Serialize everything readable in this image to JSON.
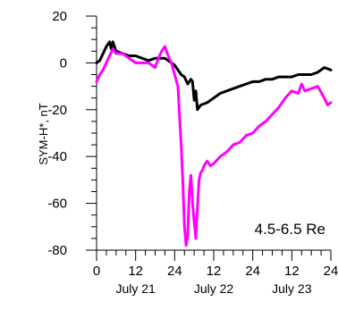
{
  "chart_data": {
    "type": "line",
    "ylabel": "SYM-H*, nT",
    "ylim": [
      -80,
      20
    ],
    "yticks": [
      20,
      0,
      -20,
      -40,
      -60,
      -80
    ],
    "xlim": [
      0,
      72
    ],
    "xticks": [
      0,
      12,
      24,
      36,
      48,
      60,
      72
    ],
    "xtick_labels": [
      "0",
      "12",
      "24",
      "12",
      "24",
      "12",
      "24"
    ],
    "date_labels": [
      {
        "label": "July 21",
        "x": 12
      },
      {
        "label": "July 22",
        "x": 36
      },
      {
        "label": "July 23",
        "x": 60
      }
    ],
    "annotation": "4.5-6.5 Re",
    "grid": false,
    "series": [
      {
        "color": "#000000",
        "x": [
          0,
          1,
          2,
          3,
          4,
          4.5,
          5,
          6,
          8,
          10,
          12,
          14,
          16,
          18,
          19,
          20,
          21,
          22,
          23,
          24,
          25,
          26,
          27,
          28,
          29,
          29.5,
          30,
          30.5,
          31,
          32,
          34,
          36,
          38,
          40,
          42,
          44,
          46,
          48,
          50,
          52,
          54,
          56,
          58,
          60,
          62,
          64,
          66,
          68,
          70,
          72
        ],
        "y": [
          0,
          1,
          4,
          7,
          9,
          6,
          9,
          5,
          4,
          3,
          3,
          2,
          1,
          2,
          2,
          2,
          2,
          1,
          0,
          -1,
          -3,
          -5,
          -6,
          -9,
          -7,
          -8,
          -16,
          -12,
          -20,
          -18,
          -17,
          -15,
          -13,
          -12,
          -11,
          -10,
          -9,
          -8,
          -8,
          -7,
          -7,
          -6,
          -6,
          -6,
          -5,
          -5,
          -5,
          -4,
          -2,
          -3
        ]
      },
      {
        "color": "#ff00ff",
        "x": [
          0,
          1,
          2,
          3,
          4,
          5,
          6,
          8,
          10,
          12,
          14,
          16,
          18,
          19,
          20,
          21,
          22,
          23,
          24,
          25,
          26,
          26.5,
          27,
          27.5,
          28,
          28.5,
          29,
          29.5,
          30,
          30.5,
          31,
          31.5,
          32,
          32.5,
          33,
          34,
          35,
          36,
          38,
          40,
          42,
          44,
          46,
          48,
          50,
          52,
          54,
          56,
          58,
          60,
          62,
          63,
          64,
          66,
          68,
          70,
          71,
          72
        ],
        "y": [
          -8,
          -5,
          -3,
          0,
          3,
          6,
          4,
          4,
          2,
          0,
          0,
          0,
          -2,
          2,
          5,
          7,
          3,
          0,
          -5,
          -10,
          -35,
          -50,
          -70,
          -78,
          -74,
          -55,
          -48,
          -60,
          -68,
          -75,
          -62,
          -50,
          -47,
          -46,
          -44,
          -42,
          -44,
          -43,
          -40,
          -38,
          -35,
          -34,
          -31,
          -30,
          -27,
          -25,
          -22,
          -19,
          -15,
          -12,
          -13,
          -9,
          -12,
          -11,
          -10,
          -15,
          -18,
          -17
        ]
      }
    ]
  }
}
